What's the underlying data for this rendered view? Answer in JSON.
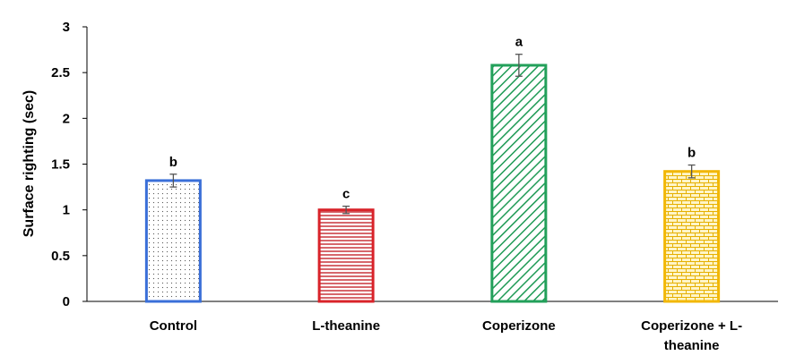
{
  "chart_data": {
    "type": "bar",
    "categories": [
      "Control",
      "L-theanine",
      "Coperizone",
      "Coperizone + L-theanine"
    ],
    "category_label_lines": [
      [
        "Control"
      ],
      [
        "L-theanine"
      ],
      [
        "Coperizone"
      ],
      [
        "Coperizone + L-",
        "theanine"
      ]
    ],
    "values": [
      1.32,
      1.0,
      2.58,
      1.42
    ],
    "errors": [
      0.07,
      0.04,
      0.12,
      0.07
    ],
    "significance_letters": [
      "b",
      "c",
      "a",
      "b"
    ],
    "ylabel": "Surface righting (sec)",
    "xlabel": "",
    "ylim": [
      0,
      3
    ],
    "yticks": [
      "0",
      "0.5",
      "1",
      "1.5",
      "2",
      "2.5",
      "3"
    ],
    "grid": false,
    "legend": "none",
    "bar_styles": [
      {
        "stroke": "#3A6FD8",
        "pattern": "dots"
      },
      {
        "stroke": "#D9232A",
        "pattern": "horizontal-lines"
      },
      {
        "stroke": "#22A05A",
        "pattern": "diagonal-lines"
      },
      {
        "stroke": "#F2B705",
        "pattern": "bricks"
      }
    ]
  }
}
